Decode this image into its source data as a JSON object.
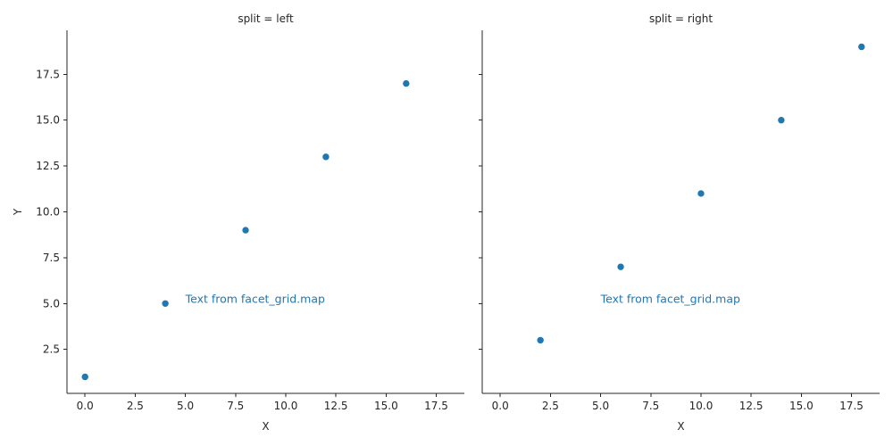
{
  "chart_data": {
    "type": "scatter",
    "color": "#1f77b4",
    "grid": false,
    "legend": "none",
    "shared_axes": {
      "xlim": [
        -0.9,
        18.9
      ],
      "ylim": [
        0.1,
        19.9
      ]
    },
    "x_ticks": [
      "0.0",
      "2.5",
      "5.0",
      "7.5",
      "10.0",
      "12.5",
      "15.0",
      "17.5"
    ],
    "x_tick_values": [
      0,
      2.5,
      5,
      7.5,
      10,
      12.5,
      15,
      17.5
    ],
    "y_ticks": [
      "2.5",
      "5.0",
      "7.5",
      "10.0",
      "12.5",
      "15.0",
      "17.5"
    ],
    "y_tick_values": [
      2.5,
      5,
      7.5,
      10,
      12.5,
      15,
      17.5
    ],
    "ylabel": "Y",
    "panels": [
      {
        "title": "split = left",
        "xlabel": "X",
        "points": [
          {
            "x": 0,
            "y": 1
          },
          {
            "x": 4,
            "y": 5
          },
          {
            "x": 8,
            "y": 9
          },
          {
            "x": 12,
            "y": 13
          },
          {
            "x": 16,
            "y": 17
          }
        ],
        "annotation": {
          "text": "Text from facet_grid.map",
          "x": 5,
          "y": 5
        }
      },
      {
        "title": "split = right",
        "xlabel": "X",
        "points": [
          {
            "x": 2,
            "y": 3
          },
          {
            "x": 6,
            "y": 7
          },
          {
            "x": 10,
            "y": 11
          },
          {
            "x": 14,
            "y": 15
          },
          {
            "x": 18,
            "y": 19
          }
        ],
        "annotation": {
          "text": "Text from facet_grid.map",
          "x": 5,
          "y": 5
        }
      }
    ]
  }
}
